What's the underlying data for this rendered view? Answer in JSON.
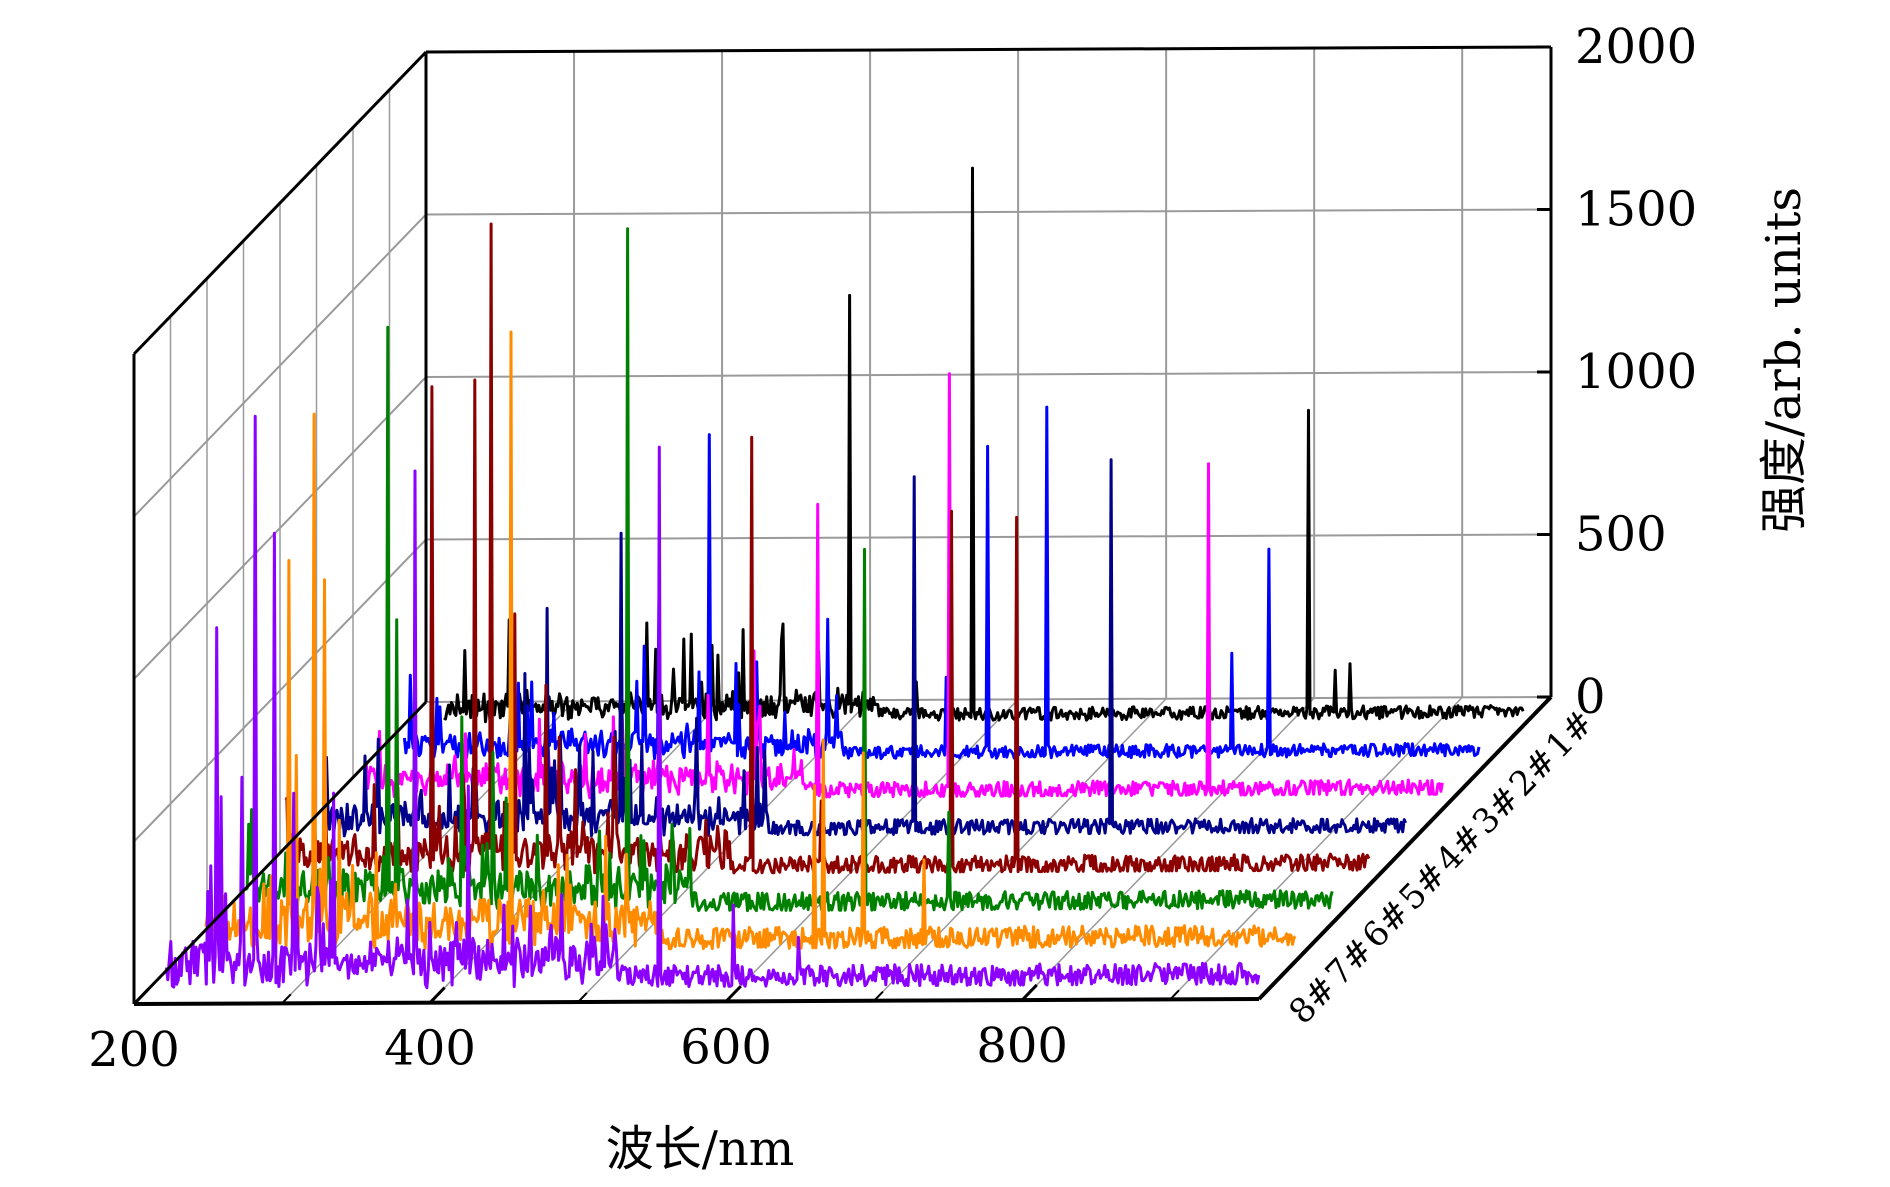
{
  "chart_data": {
    "type": "line",
    "view": "3d-waterfall",
    "xlabel": "波长/nm",
    "ylabel": "",
    "zlabel": "强度/arb. units",
    "xlim": [
      200,
      960
    ],
    "zlim": [
      0,
      2000
    ],
    "x_ticks": [
      "200",
      "400",
      "600",
      "800"
    ],
    "z_ticks": [
      "0",
      "500",
      "1000",
      "1500",
      "2000"
    ],
    "grid": true,
    "series": [
      {
        "name": "1#",
        "color": "#000000",
        "base": 20,
        "noise": 20,
        "peaks": [
          [
            393,
            270
          ],
          [
            425,
            150
          ],
          [
            455,
            300
          ],
          [
            500,
            1310
          ],
          [
            545,
            120
          ],
          [
            583,
            1700
          ],
          [
            810,
            950
          ],
          [
            828,
            150
          ],
          [
            838,
            170
          ]
        ]
      },
      {
        "name": "2#",
        "color": "#0000ff",
        "base": 20,
        "noise": 20,
        "peaks": [
          [
            386,
            350
          ],
          [
            396,
            500
          ],
          [
            430,
            1000
          ],
          [
            462,
            300
          ],
          [
            510,
            430
          ],
          [
            590,
            250
          ],
          [
            618,
            960
          ],
          [
            658,
            1080
          ],
          [
            783,
            320
          ],
          [
            808,
            640
          ]
        ]
      },
      {
        "name": "3#",
        "color": "#ff00ff",
        "base": 20,
        "noise": 25,
        "peaks": [
          [
            395,
            300
          ],
          [
            485,
            450
          ],
          [
            528,
            900
          ],
          [
            617,
            1300
          ],
          [
            792,
            1020
          ]
        ]
      },
      {
        "name": "4#",
        "color": "#00008b",
        "base": 20,
        "noise": 25,
        "peaks": [
          [
            355,
            500
          ],
          [
            370,
            700
          ],
          [
            392,
            280
          ],
          [
            420,
            930
          ],
          [
            434,
            280
          ],
          [
            471,
            360
          ],
          [
            618,
            1100
          ],
          [
            751,
            1150
          ]
        ]
      },
      {
        "name": "5#",
        "color": "#8b0000",
        "base": 20,
        "noise": 30,
        "peaks": [
          [
            317,
            1500
          ],
          [
            346,
            1520
          ],
          [
            357,
            2000
          ],
          [
            373,
            800
          ],
          [
            394,
            580
          ],
          [
            403,
            420
          ],
          [
            414,
            320
          ],
          [
            440,
            420
          ],
          [
            533,
            1340
          ],
          [
            580,
            220
          ],
          [
            668,
            1110
          ],
          [
            712,
            1090
          ]
        ]
      },
      {
        "name": "6#",
        "color": "#008000",
        "base": 25,
        "noise": 30,
        "peaks": [
          [
            312,
            1800
          ],
          [
            318,
            900
          ],
          [
            330,
            600
          ],
          [
            362,
            600
          ],
          [
            383,
            490
          ],
          [
            392,
            350
          ],
          [
            474,
            2100
          ],
          [
            634,
            1110
          ],
          [
            691,
            300
          ]
        ]
      },
      {
        "name": "7#",
        "color": "#ff8c00",
        "base": 30,
        "noise": 35,
        "peaks": [
          [
            270,
            1200
          ],
          [
            275,
            600
          ],
          [
            287,
            1650
          ],
          [
            294,
            1140
          ],
          [
            304,
            400
          ],
          [
            420,
            1900
          ],
          [
            625,
            500
          ],
          [
            631,
            640
          ],
          [
            658,
            600
          ],
          [
            699,
            270
          ]
        ]
      },
      {
        "name": "8#",
        "color": "#8b00ff",
        "base": 30,
        "noise": 35,
        "peaks": [
          [
            246,
            1110
          ],
          [
            249,
            590
          ],
          [
            263,
            650
          ],
          [
            272,
            1760
          ],
          [
            285,
            1400
          ],
          [
            298,
            600
          ],
          [
            315,
            280
          ],
          [
            325,
            600
          ],
          [
            380,
            1590
          ],
          [
            408,
            200
          ],
          [
            416,
            620
          ],
          [
            545,
            1660
          ],
          [
            595,
            250
          ],
          [
            639,
            150
          ]
        ]
      }
    ]
  }
}
